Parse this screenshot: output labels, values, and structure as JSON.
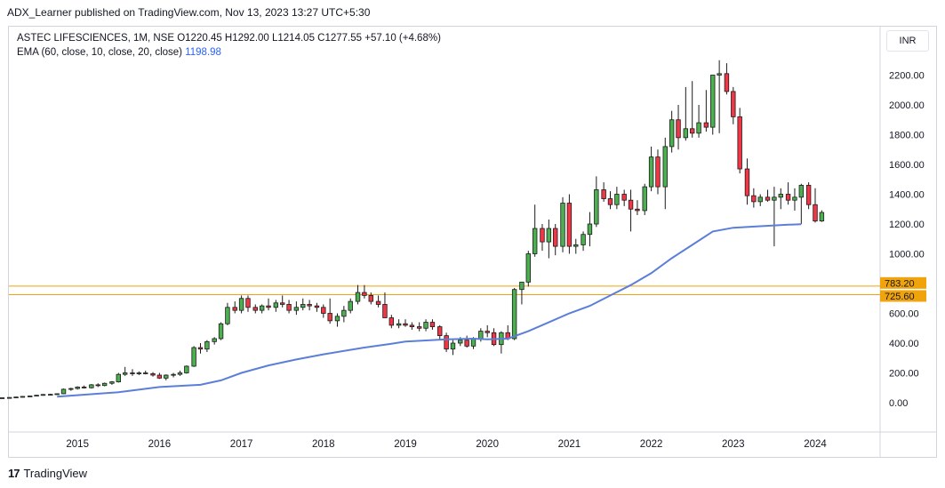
{
  "header": {
    "published": "ADX_Learner published on TradingView.com, Nov 13, 2023 13:27 UTC+5:30"
  },
  "legend": {
    "symbol": "ASTEC LIFESCIENCES, 1M, NSE",
    "ohlc": "O1220.45  H1292.00  L1214.05  C1277.55  +57.10 (+4.68%)",
    "ema_label": "EMA (60, close, 10, close, 20, close)",
    "ema_value": "1198.98"
  },
  "currency": "INR",
  "footer": {
    "logo": "17",
    "brand": "TradingView"
  },
  "colors": {
    "up": "#26a69a",
    "up_fill": "#4caf50",
    "down": "#f23645",
    "ema": "#5b7fd8",
    "level": "#f0a30a"
  },
  "chart_data": {
    "type": "candlestick",
    "ylim": [
      -200,
      2400
    ],
    "y_ticks": [
      {
        "value": 0,
        "label": "0.00"
      },
      {
        "value": 200,
        "label": "200.00"
      },
      {
        "value": 400,
        "label": "400.00"
      },
      {
        "value": 600,
        "label": "600.00"
      },
      {
        "value": 1000,
        "label": "1000.00"
      },
      {
        "value": 1200,
        "label": "1200.00"
      },
      {
        "value": 1400,
        "label": "1400.00"
      },
      {
        "value": 1600,
        "label": "1600.00"
      },
      {
        "value": 1800,
        "label": "1800.00"
      },
      {
        "value": 2000,
        "label": "2000.00"
      },
      {
        "value": 2200,
        "label": "2200.00"
      }
    ],
    "x_ticks": [
      "2015",
      "2016",
      "2017",
      "2018",
      "2019",
      "2020",
      "2021",
      "2022",
      "2023",
      "2024"
    ],
    "levels": [
      {
        "value": 783.2,
        "label": "783.20"
      },
      {
        "value": 725.6,
        "label": "725.60"
      }
    ],
    "ema_points": [
      [
        2014.75,
        40
      ],
      [
        2015.5,
        70
      ],
      [
        2016.0,
        105
      ],
      [
        2016.5,
        120
      ],
      [
        2016.75,
        150
      ],
      [
        2017.0,
        200
      ],
      [
        2017.33,
        250
      ],
      [
        2017.67,
        290
      ],
      [
        2018.0,
        325
      ],
      [
        2018.5,
        370
      ],
      [
        2018.83,
        395
      ],
      [
        2019.0,
        410
      ],
      [
        2019.5,
        425
      ],
      [
        2019.83,
        430
      ],
      [
        2020.0,
        425
      ],
      [
        2020.25,
        430
      ],
      [
        2020.5,
        480
      ],
      [
        2020.75,
        540
      ],
      [
        2021.0,
        600
      ],
      [
        2021.25,
        650
      ],
      [
        2021.5,
        720
      ],
      [
        2021.75,
        790
      ],
      [
        2022.0,
        870
      ],
      [
        2022.25,
        970
      ],
      [
        2022.5,
        1060
      ],
      [
        2022.75,
        1150
      ],
      [
        2023.0,
        1175
      ],
      [
        2023.33,
        1185
      ],
      [
        2023.67,
        1195
      ],
      [
        2023.83,
        1199
      ]
    ],
    "candles": [
      [
        2014.0,
        32,
        35,
        28,
        30
      ],
      [
        2014.08,
        30,
        34,
        27,
        33
      ],
      [
        2014.17,
        33,
        37,
        30,
        35
      ],
      [
        2014.25,
        35,
        40,
        32,
        38
      ],
      [
        2014.33,
        38,
        44,
        35,
        42
      ],
      [
        2014.42,
        42,
        48,
        40,
        45
      ],
      [
        2014.5,
        45,
        52,
        42,
        50
      ],
      [
        2014.58,
        50,
        58,
        47,
        55
      ],
      [
        2014.67,
        55,
        60,
        50,
        56
      ],
      [
        2014.75,
        56,
        62,
        53,
        60
      ],
      [
        2014.83,
        60,
        95,
        58,
        90
      ],
      [
        2014.92,
        90,
        100,
        80,
        95
      ],
      [
        2015.0,
        95,
        110,
        88,
        105
      ],
      [
        2015.08,
        105,
        115,
        95,
        100
      ],
      [
        2015.17,
        100,
        125,
        95,
        120
      ],
      [
        2015.25,
        120,
        130,
        105,
        115
      ],
      [
        2015.33,
        115,
        135,
        110,
        130
      ],
      [
        2015.42,
        130,
        145,
        120,
        140
      ],
      [
        2015.5,
        140,
        200,
        135,
        190
      ],
      [
        2015.58,
        190,
        240,
        180,
        200
      ],
      [
        2015.67,
        200,
        225,
        180,
        195
      ],
      [
        2015.75,
        195,
        210,
        185,
        200
      ],
      [
        2015.83,
        200,
        215,
        190,
        195
      ],
      [
        2015.92,
        195,
        205,
        175,
        185
      ],
      [
        2016.0,
        185,
        200,
        160,
        165
      ],
      [
        2016.08,
        165,
        190,
        150,
        185
      ],
      [
        2016.17,
        185,
        200,
        170,
        190
      ],
      [
        2016.25,
        190,
        215,
        180,
        200
      ],
      [
        2016.33,
        200,
        250,
        195,
        245
      ],
      [
        2016.42,
        245,
        380,
        240,
        370
      ],
      [
        2016.5,
        370,
        400,
        330,
        360
      ],
      [
        2016.58,
        360,
        420,
        340,
        410
      ],
      [
        2016.67,
        410,
        440,
        390,
        430
      ],
      [
        2016.75,
        430,
        540,
        420,
        530
      ],
      [
        2016.83,
        530,
        670,
        520,
        640
      ],
      [
        2016.92,
        640,
        680,
        600,
        620
      ],
      [
        2017.0,
        620,
        720,
        600,
        700
      ],
      [
        2017.08,
        700,
        720,
        610,
        640
      ],
      [
        2017.17,
        640,
        660,
        600,
        620
      ],
      [
        2017.25,
        620,
        660,
        600,
        650
      ],
      [
        2017.33,
        650,
        700,
        620,
        640
      ],
      [
        2017.42,
        640,
        690,
        610,
        670
      ],
      [
        2017.5,
        670,
        720,
        640,
        660
      ],
      [
        2017.58,
        660,
        690,
        600,
        620
      ],
      [
        2017.67,
        620,
        680,
        590,
        640
      ],
      [
        2017.75,
        640,
        700,
        620,
        660
      ],
      [
        2017.83,
        660,
        690,
        620,
        650
      ],
      [
        2017.92,
        650,
        670,
        610,
        640
      ],
      [
        2018.0,
        640,
        660,
        570,
        600
      ],
      [
        2018.08,
        600,
        700,
        530,
        550
      ],
      [
        2018.17,
        550,
        600,
        510,
        580
      ],
      [
        2018.25,
        580,
        650,
        540,
        620
      ],
      [
        2018.33,
        620,
        700,
        600,
        680
      ],
      [
        2018.42,
        680,
        790,
        660,
        740
      ],
      [
        2018.5,
        740,
        790,
        700,
        720
      ],
      [
        2018.58,
        720,
        740,
        660,
        680
      ],
      [
        2018.67,
        680,
        720,
        640,
        660
      ],
      [
        2018.75,
        660,
        740,
        570,
        570
      ],
      [
        2018.83,
        570,
        590,
        500,
        520
      ],
      [
        2018.92,
        520,
        560,
        500,
        530
      ],
      [
        2019.0,
        530,
        560,
        510,
        520
      ],
      [
        2019.08,
        520,
        540,
        490,
        510
      ],
      [
        2019.17,
        510,
        540,
        480,
        500
      ],
      [
        2019.25,
        500,
        560,
        480,
        540
      ],
      [
        2019.33,
        540,
        560,
        490,
        510
      ],
      [
        2019.42,
        510,
        520,
        420,
        450
      ],
      [
        2019.5,
        450,
        470,
        340,
        360
      ],
      [
        2019.58,
        360,
        420,
        320,
        400
      ],
      [
        2019.67,
        400,
        440,
        380,
        420
      ],
      [
        2019.75,
        420,
        450,
        370,
        380
      ],
      [
        2019.83,
        380,
        440,
        360,
        430
      ],
      [
        2019.92,
        430,
        500,
        410,
        480
      ],
      [
        2020.0,
        480,
        520,
        440,
        470
      ],
      [
        2020.08,
        470,
        500,
        380,
        390
      ],
      [
        2020.17,
        390,
        480,
        330,
        470
      ],
      [
        2020.25,
        470,
        520,
        420,
        430
      ],
      [
        2020.33,
        430,
        770,
        420,
        760
      ],
      [
        2020.42,
        760,
        800,
        660,
        810
      ],
      [
        2020.5,
        810,
        1020,
        780,
        1000
      ],
      [
        2020.58,
        1000,
        1330,
        980,
        1170
      ],
      [
        2020.67,
        1170,
        1200,
        1020,
        1080
      ],
      [
        2020.75,
        1080,
        1230,
        970,
        1170
      ],
      [
        2020.83,
        1170,
        1200,
        990,
        1050
      ],
      [
        2020.92,
        1050,
        1380,
        1010,
        1340
      ],
      [
        2021.0,
        1340,
        1400,
        1000,
        1050
      ],
      [
        2021.08,
        1050,
        1100,
        1000,
        1060
      ],
      [
        2021.17,
        1060,
        1150,
        1020,
        1130
      ],
      [
        2021.25,
        1130,
        1280,
        1050,
        1200
      ],
      [
        2021.33,
        1200,
        1520,
        1180,
        1430
      ],
      [
        2021.42,
        1430,
        1480,
        1350,
        1370
      ],
      [
        2021.5,
        1370,
        1420,
        1300,
        1330
      ],
      [
        2021.58,
        1330,
        1450,
        1300,
        1400
      ],
      [
        2021.67,
        1400,
        1430,
        1320,
        1360
      ],
      [
        2021.75,
        1360,
        1430,
        1150,
        1300
      ],
      [
        2021.83,
        1300,
        1360,
        1260,
        1290
      ],
      [
        2021.92,
        1290,
        1470,
        1260,
        1450
      ],
      [
        2022.0,
        1450,
        1720,
        1420,
        1650
      ],
      [
        2022.08,
        1650,
        1700,
        1400,
        1450
      ],
      [
        2022.17,
        1450,
        1780,
        1300,
        1720
      ],
      [
        2022.25,
        1720,
        1960,
        1680,
        1900
      ],
      [
        2022.33,
        1900,
        2000,
        1700,
        1780
      ],
      [
        2022.42,
        1780,
        2120,
        1760,
        1840
      ],
      [
        2022.5,
        1840,
        2160,
        1780,
        1810
      ],
      [
        2022.58,
        1810,
        2000,
        1780,
        1880
      ],
      [
        2022.67,
        1880,
        2100,
        1820,
        1850
      ],
      [
        2022.75,
        1850,
        2180,
        1800,
        2200
      ],
      [
        2022.83,
        2200,
        2300,
        1810,
        2210
      ],
      [
        2022.92,
        2210,
        2280,
        2070,
        2090
      ],
      [
        2023.0,
        2090,
        2120,
        1870,
        1920
      ],
      [
        2023.08,
        1920,
        1980,
        1540,
        1570
      ],
      [
        2023.17,
        1570,
        1640,
        1330,
        1390
      ],
      [
        2023.25,
        1390,
        1440,
        1310,
        1350
      ],
      [
        2023.33,
        1350,
        1400,
        1320,
        1380
      ],
      [
        2023.42,
        1380,
        1430,
        1350,
        1360
      ],
      [
        2023.5,
        1360,
        1450,
        1050,
        1380
      ],
      [
        2023.58,
        1380,
        1440,
        1300,
        1400
      ],
      [
        2023.67,
        1400,
        1480,
        1330,
        1360
      ],
      [
        2023.75,
        1360,
        1440,
        1290,
        1380
      ],
      [
        2023.83,
        1380,
        1470,
        1200,
        1460
      ],
      [
        2023.92,
        1460,
        1480,
        1300,
        1330
      ]
    ],
    "last_candles": [
      [
        2024.0,
        1330,
        1440,
        1210,
        1220
      ],
      [
        2024.08,
        1220.45,
        1292.0,
        1214.05,
        1277.55
      ]
    ]
  }
}
